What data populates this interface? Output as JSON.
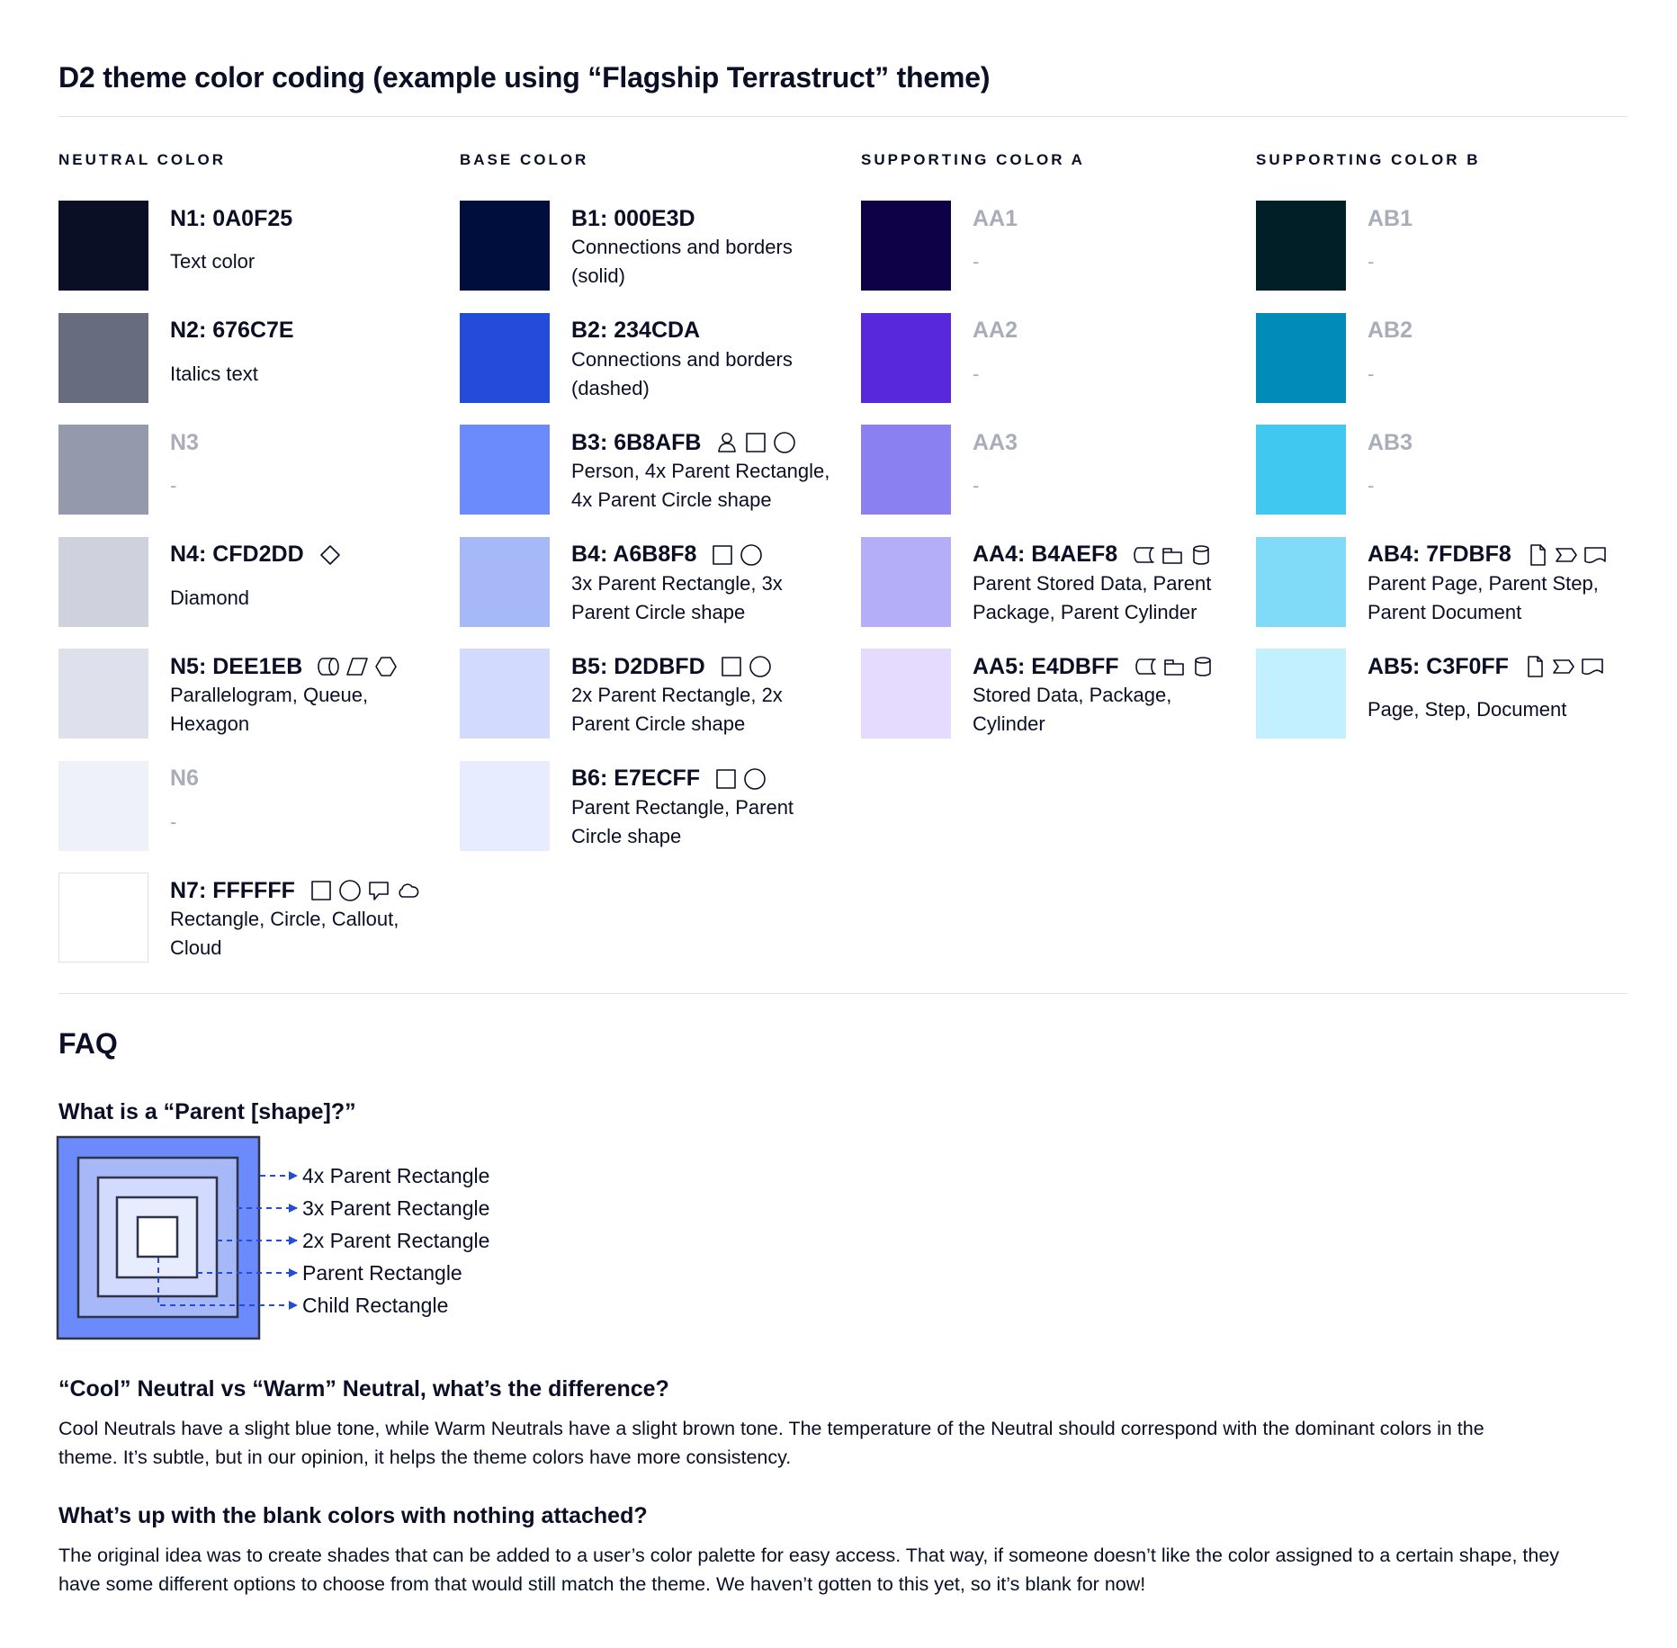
{
  "title": "D2 theme color coding (example using “Flagship Terrastruct” theme)",
  "columns": [
    {
      "header": "NEUTRAL COLOR",
      "items": [
        {
          "swatch": "#0A0F25",
          "title": "N1: 0A0F25",
          "desc": [
            "Text color"
          ],
          "icons": []
        },
        {
          "swatch": "#676C7E",
          "title": "N2: 676C7E",
          "desc": [
            "Italics text"
          ],
          "icons": []
        },
        {
          "swatch": "#9499AB",
          "title": "N3",
          "desc": [
            "-"
          ],
          "icons": [],
          "muted": true
        },
        {
          "swatch": "#CFD2DD",
          "title": "N4: CFD2DD",
          "desc": [
            "Diamond"
          ],
          "icons": [
            "diamond"
          ]
        },
        {
          "swatch": "#DEE1EB",
          "title": "N5: DEE1EB",
          "desc": [
            "Parallelogram, Queue,",
            "Hexagon"
          ],
          "icons": [
            "queue",
            "parallelogram",
            "hexagon"
          ]
        },
        {
          "swatch": "#EEF1F8",
          "title": "N6",
          "desc": [
            "-"
          ],
          "icons": [],
          "muted": true
        },
        {
          "swatch": "#FFFFFF",
          "title": "N7: FFFFFF",
          "desc": [
            "Rectangle, Circle, Callout,",
            "Cloud"
          ],
          "icons": [
            "rectangle",
            "circle",
            "callout",
            "cloud"
          ]
        }
      ]
    },
    {
      "header": "BASE COLOR",
      "items": [
        {
          "swatch": "#000E3D",
          "title": "B1: 000E3D",
          "desc": [
            "Connections and borders",
            "(solid)"
          ],
          "icons": []
        },
        {
          "swatch": "#234CDA",
          "title": "B2: 234CDA",
          "desc": [
            "Connections and borders",
            "(dashed)"
          ],
          "icons": []
        },
        {
          "swatch": "#6B8AFB",
          "title": "B3: 6B8AFB",
          "desc": [
            "Person, 4x Parent Rectangle,",
            "4x Parent Circle shape"
          ],
          "icons": [
            "person",
            "rectangle",
            "circle"
          ]
        },
        {
          "swatch": "#A6B8F8",
          "title": "B4: A6B8F8",
          "desc": [
            "3x Parent Rectangle, 3x",
            "Parent Circle shape"
          ],
          "icons": [
            "rectangle",
            "circle"
          ]
        },
        {
          "swatch": "#D2DBFD",
          "title": "B5: D2DBFD",
          "desc": [
            "2x Parent Rectangle, 2x",
            "Parent Circle shape"
          ],
          "icons": [
            "rectangle",
            "circle"
          ]
        },
        {
          "swatch": "#E7ECFF",
          "title": "B6: E7ECFF",
          "desc": [
            "Parent Rectangle, Parent",
            "Circle shape"
          ],
          "icons": [
            "rectangle",
            "circle"
          ]
        }
      ]
    },
    {
      "header": "SUPPORTING COLOR A",
      "items": [
        {
          "swatch": "#0F0147",
          "title": "AA1",
          "desc": [
            "-"
          ],
          "icons": [],
          "muted": true
        },
        {
          "swatch": "#5829DC",
          "title": "AA2",
          "desc": [
            "-"
          ],
          "icons": [],
          "muted": true
        },
        {
          "swatch": "#8A80F2",
          "title": "AA3",
          "desc": [
            "-"
          ],
          "icons": [],
          "muted": true
        },
        {
          "swatch": "#B4AEF8",
          "title": "AA4: B4AEF8",
          "desc": [
            "Parent Stored Data, Parent",
            "Package,  Parent Cylinder"
          ],
          "icons": [
            "stored-data",
            "package",
            "cylinder"
          ]
        },
        {
          "swatch": "#E4DBFF",
          "title": "AA5: E4DBFF",
          "desc": [
            "Stored Data, Package,",
            "Cylinder"
          ],
          "icons": [
            "stored-data",
            "package",
            "cylinder"
          ]
        }
      ]
    },
    {
      "header": "SUPPORTING COLOR B",
      "items": [
        {
          "swatch": "#011F27",
          "title": "AB1",
          "desc": [
            "-"
          ],
          "icons": [],
          "muted": true
        },
        {
          "swatch": "#008BB8",
          "title": "AB2",
          "desc": [
            "-"
          ],
          "icons": [],
          "muted": true
        },
        {
          "swatch": "#40C8F0",
          "title": "AB3",
          "desc": [
            "-"
          ],
          "icons": [],
          "muted": true
        },
        {
          "swatch": "#7FDBF8",
          "title": "AB4: 7FDBF8",
          "desc": [
            "Parent Page, Parent Step,",
            "Parent Document"
          ],
          "icons": [
            "page",
            "step",
            "document"
          ]
        },
        {
          "swatch": "#C3F0FF",
          "title": "AB5: C3F0FF",
          "desc": [
            "Page, Step, Document"
          ],
          "icons": [
            "page",
            "step",
            "document"
          ]
        }
      ]
    }
  ],
  "faq": {
    "title": "FAQ",
    "q1": "What is a “Parent [shape]?”",
    "diagram": {
      "fills": [
        "#6B8AFB",
        "#A6B8F8",
        "#D2DBFD",
        "#E7ECFF",
        "#FFFFFF"
      ],
      "arrow_color": "#234CDA",
      "labels": [
        "4x Parent Rectangle",
        "3x Parent Rectangle",
        "2x Parent Rectangle",
        "Parent Rectangle",
        "Child Rectangle"
      ]
    },
    "q2": "“Cool” Neutral vs “Warm” Neutral, what’s the difference?",
    "a2": [
      "Cool Neutrals have a slight blue tone, while Warm Neutrals have a slight brown tone. The temperature of the Neutral should correspond with the dominant colors in the",
      "theme. It’s subtle, but in our opinion, it helps the theme colors have more consistency."
    ],
    "q3": "What’s up with the blank colors with nothing attached?",
    "a3": [
      "The original idea was to create shades that can be added to a user’s color palette for easy access. That way, if someone doesn’t like the color assigned to a certain shape, they",
      "have some different options to choose from that would still match the theme. We haven’t gotten to this yet, so it’s blank for now!"
    ]
  }
}
